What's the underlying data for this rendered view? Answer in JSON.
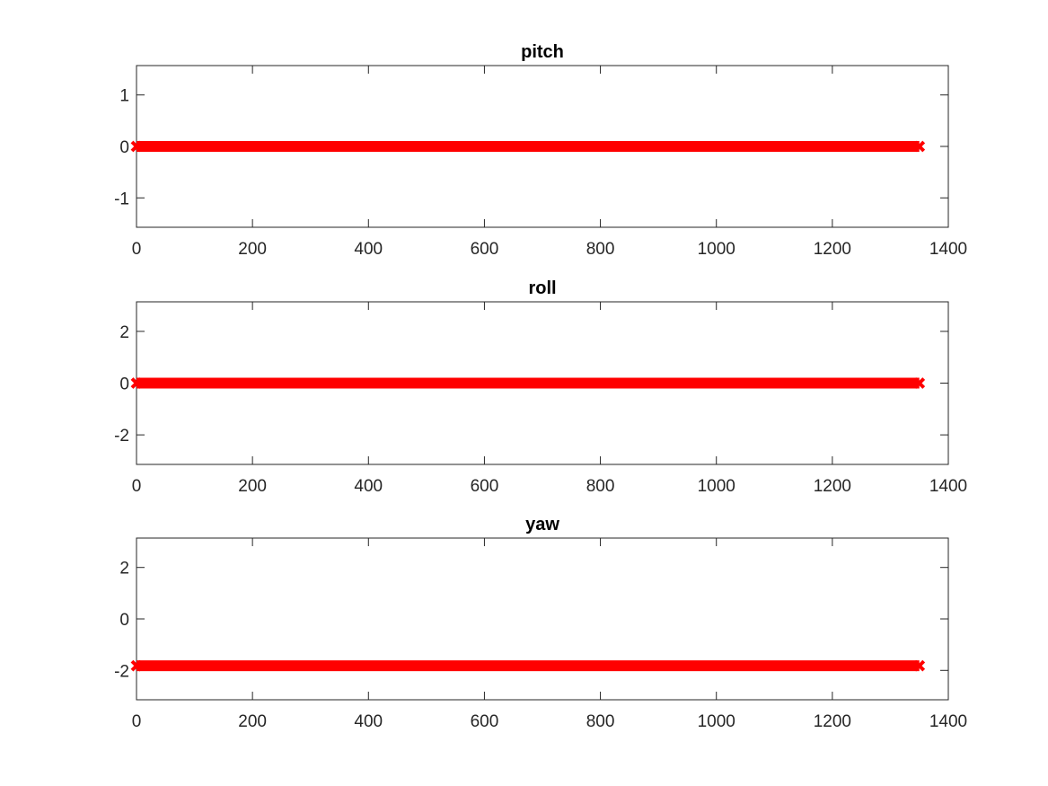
{
  "figure": {
    "background": "#ffffff",
    "marker_color": "#ff0000",
    "axis_color": "#262626"
  },
  "chart_data": [
    {
      "type": "scatter",
      "title": "pitch",
      "xlabel": "",
      "ylabel": "",
      "xlim": [
        0,
        1400
      ],
      "ylim": [
        -1.5708,
        1.5708
      ],
      "xticks": [
        0,
        200,
        400,
        600,
        800,
        1000,
        1200,
        1400
      ],
      "yticks": [
        -1,
        0,
        1
      ],
      "grid": false,
      "marker": "x",
      "series": [
        {
          "color": "#ff0000",
          "x_range": [
            0,
            1350
          ],
          "y": 0
        }
      ]
    },
    {
      "type": "scatter",
      "title": "roll",
      "xlabel": "",
      "ylabel": "",
      "xlim": [
        0,
        1400
      ],
      "ylim": [
        -3.1416,
        3.1416
      ],
      "xticks": [
        0,
        200,
        400,
        600,
        800,
        1000,
        1200,
        1400
      ],
      "yticks": [
        -2,
        0,
        2
      ],
      "grid": false,
      "marker": "x",
      "series": [
        {
          "color": "#ff0000",
          "x_range": [
            0,
            1350
          ],
          "y": 0
        }
      ]
    },
    {
      "type": "scatter",
      "title": "yaw",
      "xlabel": "",
      "ylabel": "",
      "xlim": [
        0,
        1400
      ],
      "ylim": [
        -3.1416,
        3.1416
      ],
      "xticks": [
        0,
        200,
        400,
        600,
        800,
        1000,
        1200,
        1400
      ],
      "yticks": [
        -2,
        0,
        2
      ],
      "grid": false,
      "marker": "x",
      "series": [
        {
          "color": "#ff0000",
          "x_range": [
            0,
            1350
          ],
          "y": -1.82
        }
      ]
    }
  ]
}
